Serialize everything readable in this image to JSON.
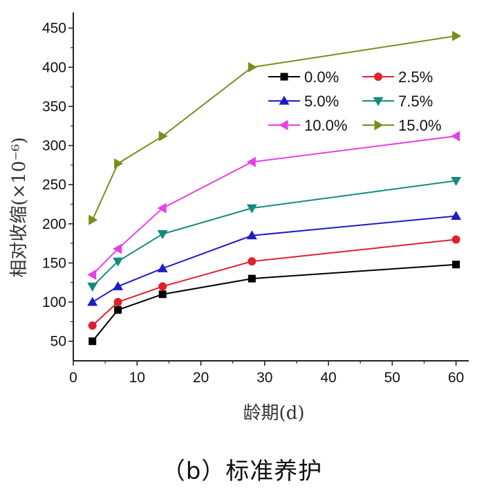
{
  "caption": "（b）标准养护",
  "chart_data": {
    "type": "line",
    "xlabel": "龄期(d)",
    "ylabel": "相对收缩(×10⁻⁶)",
    "xlim": [
      0,
      62
    ],
    "ylim": [
      25,
      470
    ],
    "xticks": [
      0,
      10,
      20,
      30,
      40,
      50,
      60
    ],
    "yticks": [
      50,
      100,
      150,
      200,
      250,
      300,
      350,
      400,
      450
    ],
    "grid": false,
    "legend_position": "top-right",
    "x": [
      3,
      7,
      14,
      28,
      60
    ],
    "series": [
      {
        "name": "0.0%",
        "marker": "square",
        "color": "#000000",
        "values": [
          50,
          90,
          110,
          130,
          148
        ]
      },
      {
        "name": "2.5%",
        "marker": "circle",
        "color": "#e0202c",
        "values": [
          70,
          100,
          120,
          152,
          180
        ]
      },
      {
        "name": "5.0%",
        "marker": "triangle-up",
        "color": "#1d1dc4",
        "values": [
          100,
          120,
          143,
          185,
          210
        ]
      },
      {
        "name": "7.5%",
        "marker": "triangle-down",
        "color": "#168a7e",
        "values": [
          120,
          152,
          187,
          220,
          255
        ]
      },
      {
        "name": "10.0%",
        "marker": "triangle-left",
        "color": "#e63fe6",
        "values": [
          135,
          168,
          220,
          279,
          312
        ]
      },
      {
        "name": "15.0%",
        "marker": "triangle-right",
        "color": "#7b8b1c",
        "values": [
          205,
          277,
          312,
          400,
          440
        ]
      }
    ]
  }
}
